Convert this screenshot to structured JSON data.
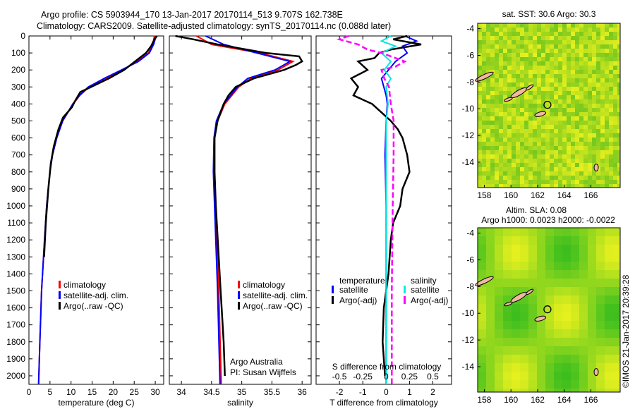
{
  "title_line1": "Argo profile: CS 5903944_170 13-Jan-2017 20170114_513 9.707S 162.738E",
  "title_line2": "Climatology: CARS2009. Satellite-adjusted climatology: synTS_20170114.nc (0.088d later)",
  "side_label": "©IMOS 21-Jan-2017 20:39:28",
  "colors": {
    "climatology": "#ff0000",
    "satellite": "#0000ff",
    "argo": "#000000",
    "sal_satellite": "#00e5e5",
    "sal_argo": "#ff00ff"
  },
  "chart_data": [
    {
      "type": "line",
      "name": "temperature-panel",
      "xlabel": "temperature (deg C)",
      "ylabel": "",
      "xlim": [
        0,
        32
      ],
      "ylim": [
        2050,
        0
      ],
      "xticks": [
        0,
        5,
        10,
        15,
        20,
        25,
        30
      ],
      "yticks": [
        0,
        100,
        200,
        300,
        400,
        500,
        600,
        700,
        800,
        900,
        1000,
        1100,
        1200,
        1300,
        1400,
        1500,
        1600,
        1700,
        1800,
        1900,
        2000
      ],
      "legend": [
        "climatology",
        "satellite-adj. clim.",
        "Argo(..raw -QC)"
      ],
      "series": [
        {
          "name": "climatology",
          "color": "#ff0000",
          "depth": [
            0,
            50,
            100,
            150,
            200,
            250,
            300,
            350,
            400,
            500,
            600,
            700,
            800,
            1000,
            1200,
            1500,
            1800,
            2050
          ],
          "values": [
            29.8,
            29.4,
            28.4,
            25.8,
            22.2,
            18.2,
            14.3,
            12.1,
            10.5,
            8.0,
            6.6,
            5.6,
            5.0,
            4.2,
            3.7,
            3.0,
            2.6,
            2.3
          ]
        },
        {
          "name": "satellite-adj. clim.",
          "color": "#0000ff",
          "depth": [
            0,
            50,
            100,
            150,
            200,
            250,
            300,
            350,
            400,
            500,
            600,
            700,
            800,
            1000,
            1200,
            1500,
            1800,
            2050
          ],
          "values": [
            30.2,
            29.6,
            28.6,
            26.0,
            22.0,
            17.9,
            14.1,
            12.0,
            10.4,
            8.0,
            6.6,
            5.6,
            5.0,
            4.2,
            3.7,
            3.0,
            2.6,
            2.3
          ]
        },
        {
          "name": "Argo(..raw -QC)",
          "color": "#000000",
          "depth": [
            0,
            20,
            60,
            100,
            150,
            200,
            250,
            300,
            330,
            380,
            420,
            480,
            550,
            650,
            750,
            900,
            1100,
            1300
          ],
          "values": [
            30.4,
            29.8,
            29.0,
            27.8,
            25.2,
            22.6,
            19.0,
            14.8,
            12.2,
            11.0,
            10.2,
            8.1,
            7.0,
            5.9,
            5.2,
            4.6,
            4.0,
            3.6
          ]
        }
      ]
    },
    {
      "type": "line",
      "name": "salinity-panel",
      "xlabel": "salinity",
      "ylabel": "",
      "xlim": [
        33.8,
        36.15
      ],
      "ylim": [
        2050,
        0
      ],
      "xticks": [
        34,
        34.5,
        35,
        35.5,
        36
      ],
      "legend": [
        "climatology",
        "satellite-adj. clim.",
        "Argo(..raw -QC)"
      ],
      "annotation": [
        "Argo Australia",
        "PI: Susan Wijffels"
      ],
      "series": [
        {
          "name": "climatology",
          "color": "#ff0000",
          "depth": [
            0,
            50,
            100,
            150,
            200,
            250,
            300,
            400,
            500,
            600,
            800,
            1000,
            1500,
            2050
          ],
          "values": [
            34.25,
            34.5,
            35.3,
            35.85,
            35.6,
            35.15,
            34.95,
            34.72,
            34.6,
            34.55,
            34.55,
            34.57,
            34.62,
            34.66
          ]
        },
        {
          "name": "satellite-adj. clim.",
          "color": "#0000ff",
          "depth": [
            0,
            50,
            100,
            150,
            200,
            250,
            300,
            400,
            500,
            600,
            800,
            1000,
            1500,
            2050
          ],
          "values": [
            34.4,
            34.7,
            35.25,
            35.8,
            35.55,
            35.1,
            34.93,
            34.7,
            34.58,
            34.54,
            34.53,
            34.55,
            34.6,
            34.64
          ]
        },
        {
          "name": "Argo(..raw -QC)",
          "color": "#000000",
          "depth": [
            0,
            20,
            50,
            100,
            120,
            150,
            170,
            200,
            250,
            300,
            350,
            400,
            500,
            600,
            800,
            1000,
            1500,
            1800,
            2000
          ],
          "values": [
            33.9,
            34.2,
            34.6,
            35.4,
            35.95,
            36.0,
            35.9,
            35.7,
            35.2,
            34.9,
            34.78,
            34.7,
            34.6,
            34.55,
            34.55,
            34.57,
            34.65,
            34.7,
            34.72
          ]
        }
      ]
    },
    {
      "type": "line",
      "name": "difference-panel",
      "xlabel": "T difference from climatology",
      "x2label": "S difference from climatology",
      "xlim": [
        -3,
        2.8
      ],
      "x2lim": [
        -0.75,
        0.7
      ],
      "ylim": [
        2050,
        0
      ],
      "xticks": [
        -2,
        -1,
        0,
        1,
        2
      ],
      "x2ticks": [
        -0.5,
        -0.25,
        0,
        0.25,
        0.5
      ],
      "legend_temperature": {
        "title": "temperature",
        "items": [
          "satellite",
          "Argo(-adj)"
        ]
      },
      "legend_salinity": {
        "title": "salinity",
        "items": [
          "satellite",
          "Argo(-adj)"
        ]
      },
      "series": [
        {
          "name": "T satellite",
          "color": "#0000ff",
          "axis": "T",
          "depth": [
            0,
            30,
            60,
            100,
            150,
            200,
            250,
            300,
            350,
            400,
            500,
            700,
            1000,
            1500,
            2050
          ],
          "values": [
            0.8,
            1.3,
            0.7,
            0.9,
            0.4,
            0.1,
            -0.2,
            -0.1,
            0,
            0.05,
            0,
            -0.05,
            0,
            0,
            0
          ]
        },
        {
          "name": "T Argo(-adj)",
          "color": "#000000",
          "axis": "T",
          "depth": [
            0,
            20,
            50,
            80,
            100,
            130,
            150,
            200,
            250,
            300,
            350,
            400,
            450,
            500,
            550,
            600,
            700,
            800,
            900,
            1000,
            1100,
            1200,
            1400,
            1600,
            1800,
            1900,
            2000
          ],
          "values": [
            0.9,
            0.3,
            1.5,
            0.2,
            -0.3,
            -0.5,
            -1.2,
            -0.8,
            -1.5,
            -1.2,
            -1.4,
            -0.6,
            -0.2,
            0.2,
            0.5,
            0.7,
            0.9,
            1.0,
            0.7,
            0.6,
            0.3,
            0.2,
            0.1,
            -0.1,
            -0.15,
            -0.1,
            -0.05
          ]
        },
        {
          "name": "S satellite",
          "color": "#00e5e5",
          "axis": "S",
          "depth": [
            0,
            30,
            60,
            100,
            150,
            200,
            250,
            300,
            400,
            500,
            1000,
            1500,
            2050
          ],
          "values": [
            0.05,
            -0.05,
            0.1,
            -0.05,
            0.05,
            -0.02,
            0.05,
            0.0,
            0.02,
            0,
            0.0,
            0.0,
            0.0
          ]
        },
        {
          "name": "S Argo(-adj)",
          "color": "#ff00ff",
          "axis": "S",
          "depth": [
            0,
            20,
            50,
            80,
            100,
            130,
            150,
            180,
            200,
            250,
            300,
            400,
            500,
            700,
            1000,
            1500,
            2050
          ],
          "values": [
            -0.4,
            -0.5,
            -0.3,
            -0.2,
            -0.05,
            0.1,
            0.2,
            0.1,
            -0.05,
            -0.02,
            0.03,
            0.05,
            0.08,
            0.08,
            0.07,
            0.06,
            0.06
          ]
        }
      ]
    },
    {
      "type": "heatmap",
      "name": "sst-map",
      "title": "sat. SST: 30.6  Argo: 30.3",
      "xticks": [
        158,
        160,
        162,
        164,
        166
      ],
      "yticks": [
        -4,
        -6,
        -8,
        -10,
        -12,
        -14
      ],
      "xlim": [
        157.5,
        168.2
      ],
      "ylim": [
        -15.9,
        -3.6
      ],
      "marker": {
        "lon": 162.738,
        "lat": -9.707
      }
    },
    {
      "type": "heatmap",
      "name": "sla-map",
      "title": "Altim. SLA: 0.08",
      "subtitle": "Argo h1000: 0.0023 h2000: -0.0022",
      "xticks": [
        158,
        160,
        162,
        164,
        166
      ],
      "yticks": [
        -4,
        -6,
        -8,
        -10,
        -12,
        -14
      ],
      "xlim": [
        157.5,
        168.2
      ],
      "ylim": [
        -15.9,
        -3.6
      ],
      "marker": {
        "lon": 162.738,
        "lat": -9.707
      }
    }
  ]
}
